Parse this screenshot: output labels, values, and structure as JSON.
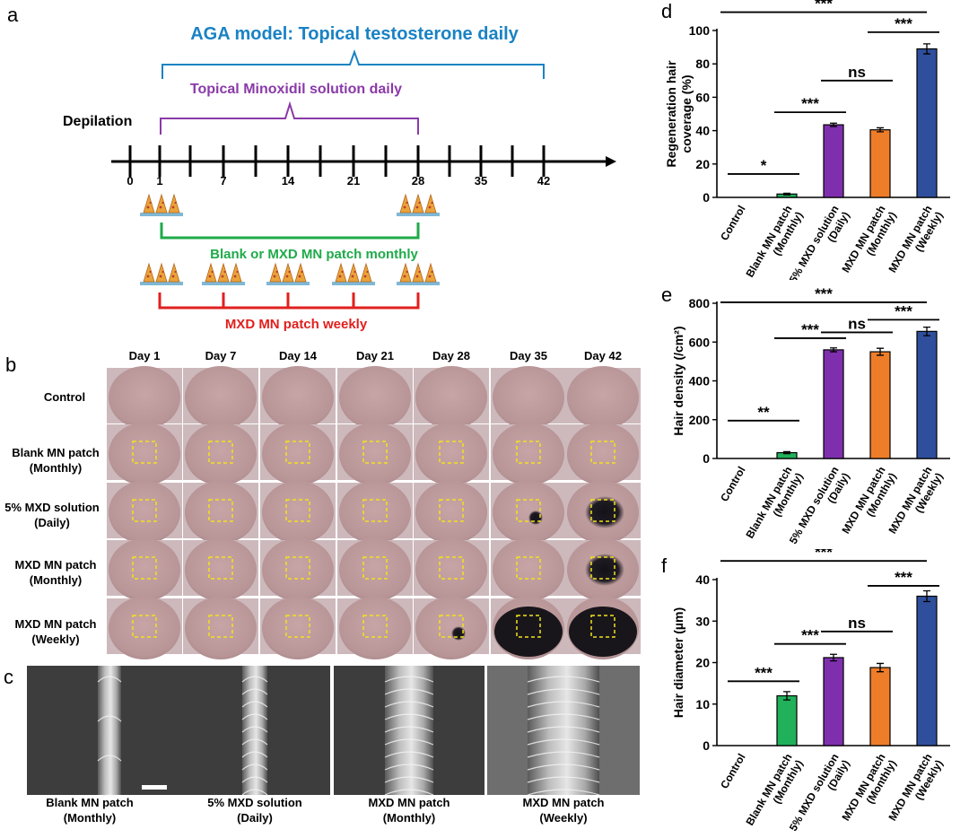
{
  "panel_letters": {
    "a": "a",
    "b": "b",
    "c": "c",
    "d": "d",
    "e": "e",
    "f": "f"
  },
  "schematic": {
    "model_title": "AGA model: Topical testosterone daily",
    "minoxidil_label": "Topical Minoxidil solution daily",
    "depilation_label": "Depilation",
    "ticks": [
      "0",
      "1",
      "7",
      "14",
      "21",
      "28",
      "35",
      "42"
    ],
    "monthly_label": "Blank or MXD MN patch monthly",
    "weekly_label": "MXD MN patch weekly",
    "colors": {
      "title": "#1a82c4",
      "minoxidil": "#8a3aa8",
      "monthly": "#1faa4a",
      "weekly": "#e0201e"
    }
  },
  "photo_grid": {
    "days": [
      "Day 1",
      "Day 7",
      "Day 14",
      "Day 21",
      "Day 28",
      "Day 35",
      "Day 42"
    ],
    "groups": [
      {
        "line1": "Control",
        "line2": ""
      },
      {
        "line1": "Blank MN patch",
        "line2": "(Monthly)"
      },
      {
        "line1": "5% MXD solution",
        "line2": "(Daily)"
      },
      {
        "line1": "MXD MN patch",
        "line2": "(Monthly)"
      },
      {
        "line1": "MXD MN patch",
        "line2": "(Weekly)"
      }
    ]
  },
  "sem": {
    "labels": [
      {
        "line1": "Blank MN patch",
        "line2": "(Monthly)"
      },
      {
        "line1": "5% MXD solution",
        "line2": "(Daily)"
      },
      {
        "line1": "MXD MN patch",
        "line2": "(Monthly)"
      },
      {
        "line1": "MXD MN patch",
        "line2": "(Weekly)"
      }
    ]
  },
  "chart_data": [
    {
      "panel": "d",
      "type": "bar",
      "categories": [
        "Control",
        "Blank MN patch (Monthly)",
        "5% MXD solution (Daily)",
        "MXD MN patch (Monthly)",
        "MXD MN patch (Weekly)"
      ],
      "category_lines": [
        [
          "Control"
        ],
        [
          "Blank MN patch",
          "(Monthly)"
        ],
        [
          "5% MXD solution",
          "(Daily)"
        ],
        [
          "MXD MN patch",
          "(Monthly)"
        ],
        [
          "MXD MN patch",
          "(Weekly)"
        ]
      ],
      "values": [
        0,
        2,
        43.5,
        40.5,
        89
      ],
      "errors": [
        0,
        0.5,
        1,
        1.2,
        3
      ],
      "colors": [
        "#ffffff",
        "#20b15a",
        "#7f2fae",
        "#ee7d2a",
        "#2f4f9c"
      ],
      "ylabel_lines": [
        "Regeneration hair",
        "coverage (%)"
      ],
      "ylim": [
        0,
        100
      ],
      "yticks": [
        0,
        20,
        40,
        60,
        80,
        100
      ],
      "significance": [
        {
          "from": 0,
          "to": 1,
          "label": "*",
          "level": 14
        },
        {
          "from": 1,
          "to": 2,
          "label": "***",
          "level": 51
        },
        {
          "from": 2,
          "to": 3,
          "label": "ns",
          "level": 70
        },
        {
          "from": 3,
          "to": 4,
          "label": "***",
          "level": 99
        },
        {
          "from": 0,
          "to": 4,
          "label": "***",
          "level": 111
        }
      ]
    },
    {
      "panel": "e",
      "type": "bar",
      "categories": [
        "Control",
        "Blank MN patch (Monthly)",
        "5% MXD solution (Daily)",
        "MXD MN patch (Monthly)",
        "MXD MN patch (Weekly)"
      ],
      "category_lines": [
        [
          "Control"
        ],
        [
          "Blank MN patch",
          "(Monthly)"
        ],
        [
          "5% MXD solution",
          "(Daily)"
        ],
        [
          "MXD MN patch",
          "(Monthly)"
        ],
        [
          "MXD MN patch",
          "(Weekly)"
        ]
      ],
      "values": [
        0,
        30,
        560,
        550,
        655
      ],
      "errors": [
        0,
        5,
        10,
        18,
        22
      ],
      "colors": [
        "#ffffff",
        "#20b15a",
        "#7f2fae",
        "#ee7d2a",
        "#2f4f9c"
      ],
      "ylabel_lines": [
        "Hair density (/cm²)"
      ],
      "ylim": [
        0,
        800
      ],
      "yticks": [
        0,
        200,
        400,
        600,
        800
      ],
      "significance": [
        {
          "from": 0,
          "to": 1,
          "label": "**",
          "level": 195
        },
        {
          "from": 1,
          "to": 2,
          "label": "***",
          "level": 620
        },
        {
          "from": 2,
          "to": 3,
          "label": "ns",
          "level": 650
        },
        {
          "from": 3,
          "to": 4,
          "label": "***",
          "level": 715
        },
        {
          "from": 0,
          "to": 4,
          "label": "***",
          "level": 805
        }
      ]
    },
    {
      "panel": "f",
      "type": "bar",
      "categories": [
        "Control",
        "Blank MN patch (Monthly)",
        "5% MXD solution (Daily)",
        "MXD MN patch (Monthly)",
        "MXD MN patch (Weekly)"
      ],
      "category_lines": [
        [
          "Control"
        ],
        [
          "Blank MN patch",
          "(Monthly)"
        ],
        [
          "5% MXD solution",
          "(Daily)"
        ],
        [
          "MXD MN patch",
          "(Monthly)"
        ],
        [
          "MXD MN patch",
          "(Weekly)"
        ]
      ],
      "values": [
        0,
        12,
        21.2,
        18.8,
        36
      ],
      "errors": [
        0,
        1,
        0.8,
        1,
        1.3
      ],
      "colors": [
        "#ffffff",
        "#20b15a",
        "#7f2fae",
        "#ee7d2a",
        "#2f4f9c"
      ],
      "ylabel_lines": [
        "Hair diameter (µm)"
      ],
      "ylim": [
        0,
        40
      ],
      "yticks": [
        0,
        10,
        20,
        30,
        40
      ],
      "significance": [
        {
          "from": 0,
          "to": 1,
          "label": "***",
          "level": 15.5
        },
        {
          "from": 1,
          "to": 2,
          "label": "***",
          "level": 24.5
        },
        {
          "from": 2,
          "to": 3,
          "label": "ns",
          "level": 27.5
        },
        {
          "from": 3,
          "to": 4,
          "label": "***",
          "level": 38.5
        },
        {
          "from": 0,
          "to": 4,
          "label": "***",
          "level": 44.5
        }
      ]
    }
  ]
}
